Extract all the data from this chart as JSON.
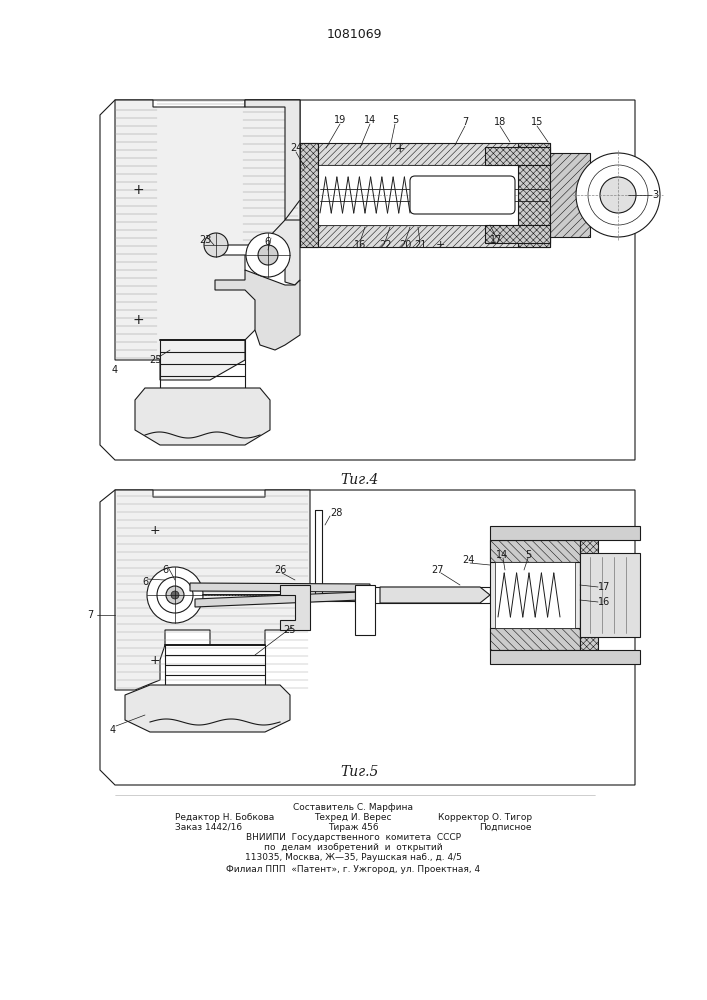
{
  "patent_number": "1081069",
  "background_color": "#ffffff",
  "line_color": "#1a1a1a",
  "fig_width": 7.07,
  "fig_height": 10.0,
  "fig4_caption": "Τиг.4",
  "fig5_caption": "Τиг.5"
}
